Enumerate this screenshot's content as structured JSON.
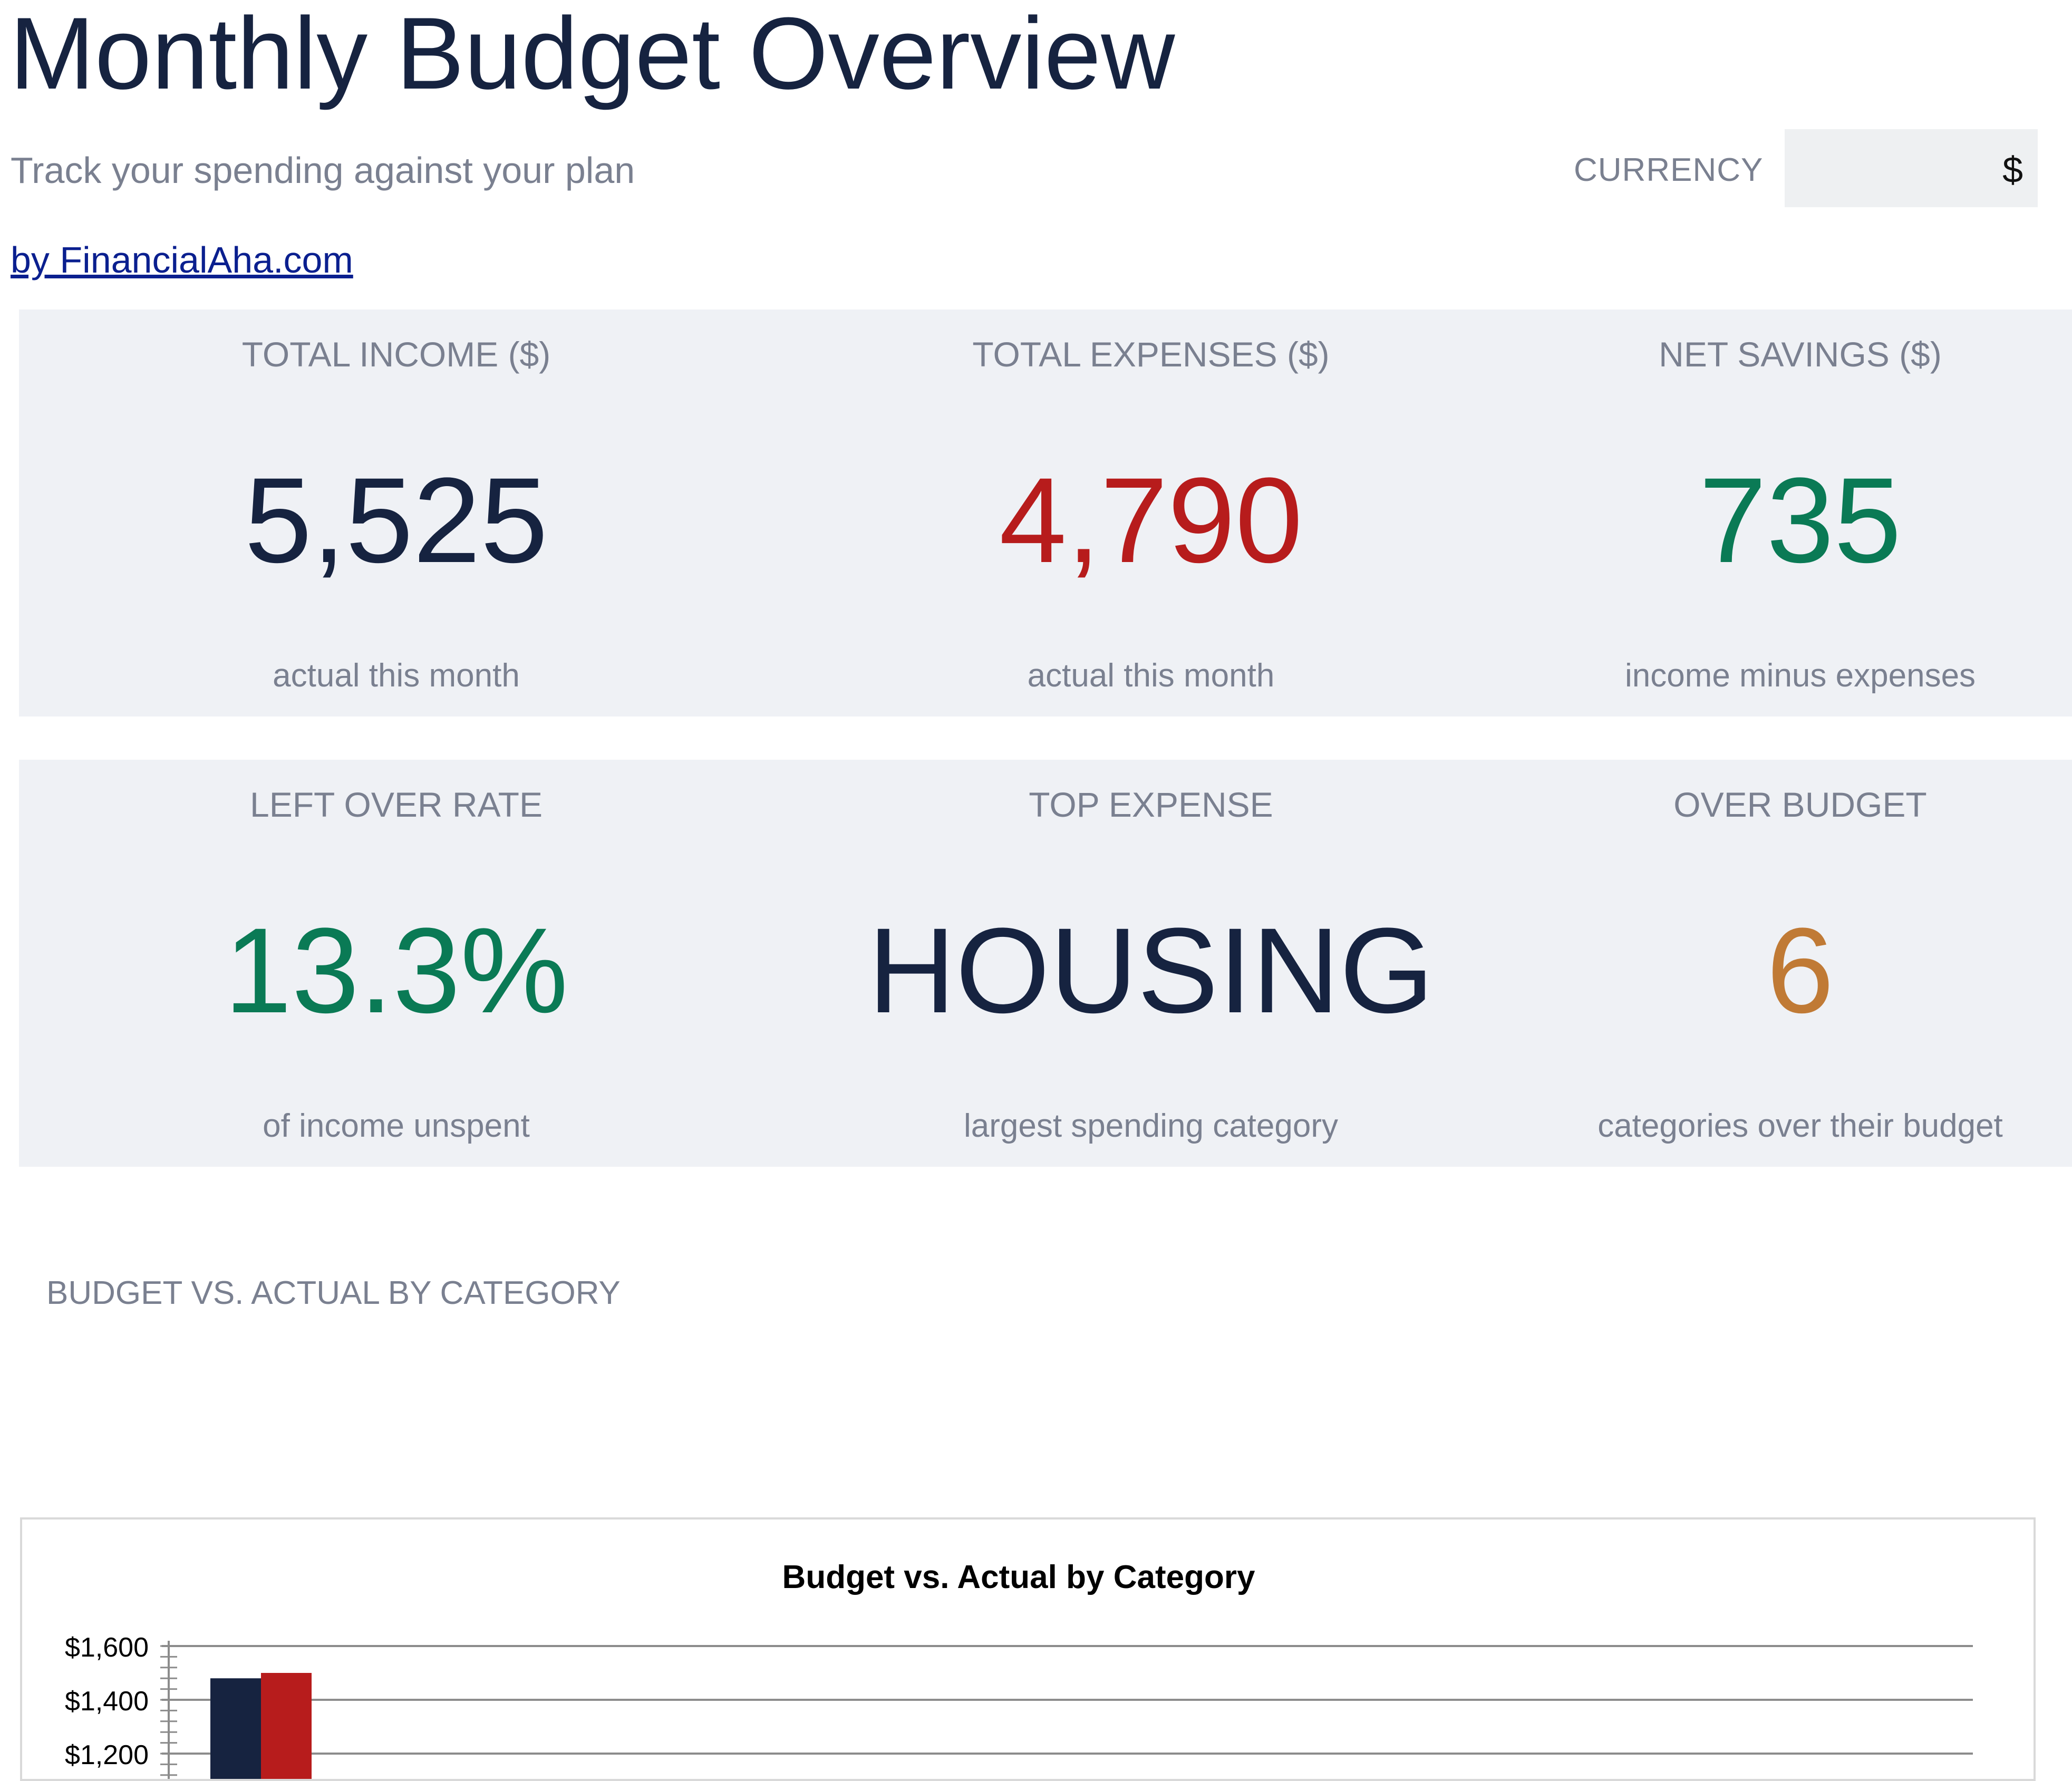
{
  "header": {
    "title": "Monthly Budget Overview",
    "subtitle": "Track your spending against your plan",
    "byline": "by FinancialAha.com",
    "currency_label": "CURRENCY",
    "currency_value": "$"
  },
  "kpis": [
    {
      "label": "TOTAL INCOME ($)",
      "value": "5,525",
      "sub": "actual this month",
      "color": "#162340"
    },
    {
      "label": "TOTAL EXPENSES ($)",
      "value": "4,790",
      "sub": "actual this month",
      "color": "#b71c1c"
    },
    {
      "label": "NET SAVINGS ($)",
      "value": "735",
      "sub": "income minus expenses",
      "color": "#0a7a55"
    },
    {
      "label": "LEFT OVER RATE",
      "value": "13.3%",
      "sub": "of income unspent",
      "color": "#0a7a55"
    },
    {
      "label": "TOP EXPENSE",
      "value": "HOUSING",
      "sub": "largest spending category",
      "color": "#162340"
    },
    {
      "label": "OVER BUDGET",
      "value": "6",
      "sub": "categories over their budget",
      "color": "#c07a35"
    }
  ],
  "section": {
    "title": "BUDGET VS. ACTUAL BY CATEGORY"
  },
  "chart_data": {
    "type": "bar",
    "title": "Budget vs. Actual by Category",
    "xlabel": "",
    "ylabel": "",
    "ylim": [
      0,
      1600
    ],
    "y_ticks": [
      "$1,600",
      "$1,400",
      "$1,200"
    ],
    "y_tick_values": [
      1600,
      1400,
      1200
    ],
    "grid": true,
    "categories": [
      ""
    ],
    "series": [
      {
        "values": [
          1480
        ],
        "color": "#162340"
      },
      {
        "values": [
          1500
        ],
        "color": "#b71c1c"
      }
    ]
  }
}
